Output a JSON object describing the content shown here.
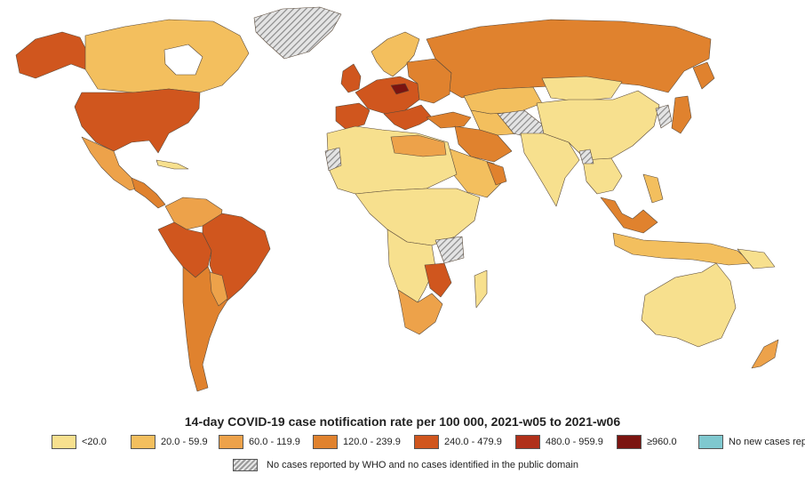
{
  "title": "14-day COVID-19 case notification rate per 100 000, 2021-w05 to 2021-w06",
  "legend": [
    {
      "label": "<20.0",
      "color": "#f7e08e"
    },
    {
      "label": "20.0 - 59.9",
      "color": "#f3bf5e"
    },
    {
      "label": "60.0 - 119.9",
      "color": "#eda24a"
    },
    {
      "label": "120.0 - 239.9",
      "color": "#e0822e"
    },
    {
      "label": "240.0 - 479.9",
      "color": "#d0561e"
    },
    {
      "label": "480.0 - 959.9",
      "color": "#b0301a"
    },
    {
      "label": "≥960.0",
      "color": "#7b1410"
    },
    {
      "label": "No new cases reported",
      "color": "#7fc8cf"
    }
  ],
  "no_data_label": "No cases reported by WHO and no cases identified in the public domain"
}
